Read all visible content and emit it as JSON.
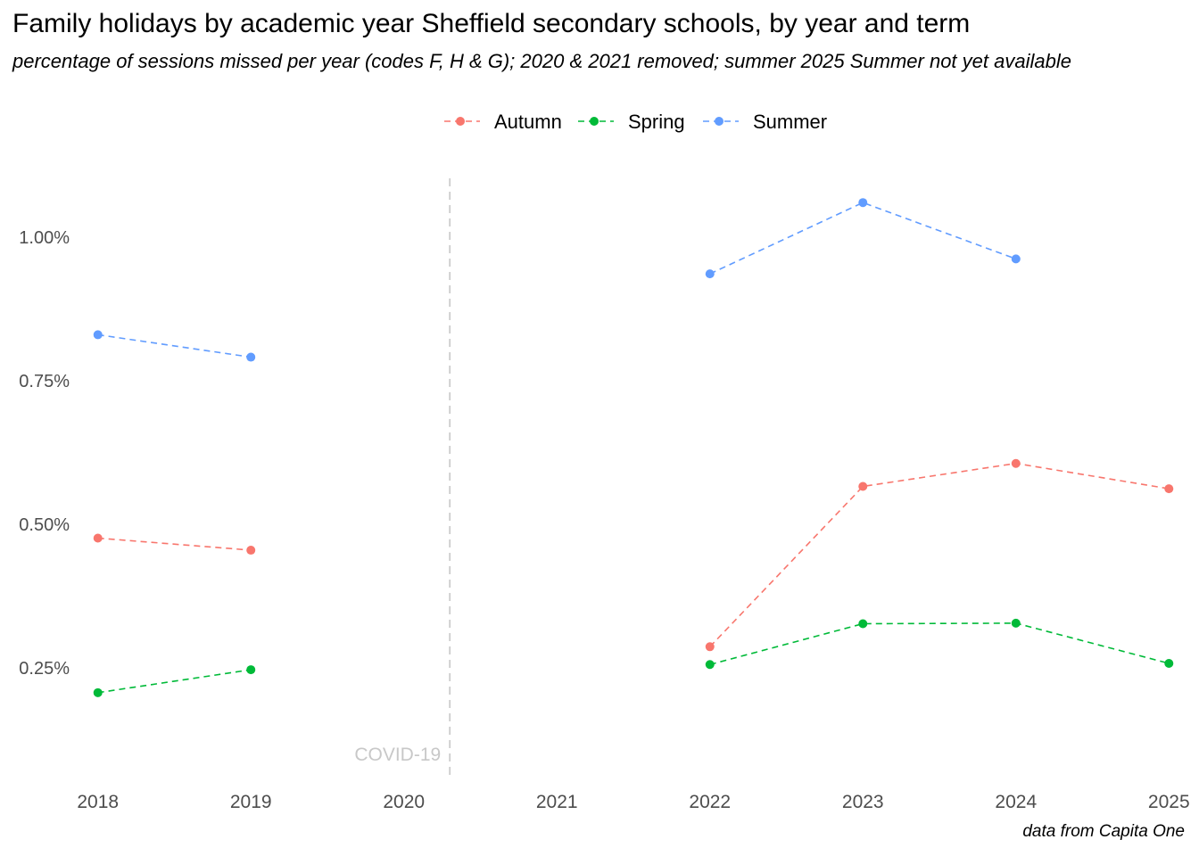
{
  "chart_data": {
    "type": "line",
    "title": "Family holidays by academic year Sheffield secondary schools, by year and term",
    "subtitle": "percentage of sessions missed per year (codes F, H & G); 2020 & 2021 removed; summer 2025 Summer not yet available",
    "caption": "data from Capita One",
    "xlabel": "",
    "ylabel": "",
    "x_ticks": [
      "2018",
      "2019",
      "2020",
      "2021",
      "2022",
      "2023",
      "2024",
      "2025"
    ],
    "y_ticks": [
      {
        "value": 0.25,
        "label": "0.25%"
      },
      {
        "value": 0.5,
        "label": "0.50%"
      },
      {
        "value": 0.75,
        "label": "0.75%"
      },
      {
        "value": 1.0,
        "label": "1.00%"
      }
    ],
    "ylim": [
      0.05,
      1.11
    ],
    "xlim": [
      2017.85,
      2025.15
    ],
    "grid": false,
    "legend_position": "top",
    "line_style": "dashed",
    "annotation": {
      "label": "COVID-19",
      "x": 2020.3,
      "color": "#c8c8c8"
    },
    "series": [
      {
        "name": "Autumn",
        "color": "#F8766D",
        "points": [
          {
            "x": 2018,
            "y": 0.476
          },
          {
            "x": 2019,
            "y": 0.455
          },
          {
            "x": 2022,
            "y": 0.287
          },
          {
            "x": 2023,
            "y": 0.566
          },
          {
            "x": 2024,
            "y": 0.606
          },
          {
            "x": 2025,
            "y": 0.562
          }
        ]
      },
      {
        "name": "Spring",
        "color": "#00BA38",
        "points": [
          {
            "x": 2018,
            "y": 0.207
          },
          {
            "x": 2019,
            "y": 0.247
          },
          {
            "x": 2022,
            "y": 0.256
          },
          {
            "x": 2023,
            "y": 0.327
          },
          {
            "x": 2024,
            "y": 0.328
          },
          {
            "x": 2025,
            "y": 0.258
          }
        ]
      },
      {
        "name": "Summer",
        "color": "#619CFF",
        "points": [
          {
            "x": 2018,
            "y": 0.83
          },
          {
            "x": 2019,
            "y": 0.791
          },
          {
            "x": 2022,
            "y": 0.936
          },
          {
            "x": 2023,
            "y": 1.06
          },
          {
            "x": 2024,
            "y": 0.962
          }
        ]
      }
    ]
  }
}
